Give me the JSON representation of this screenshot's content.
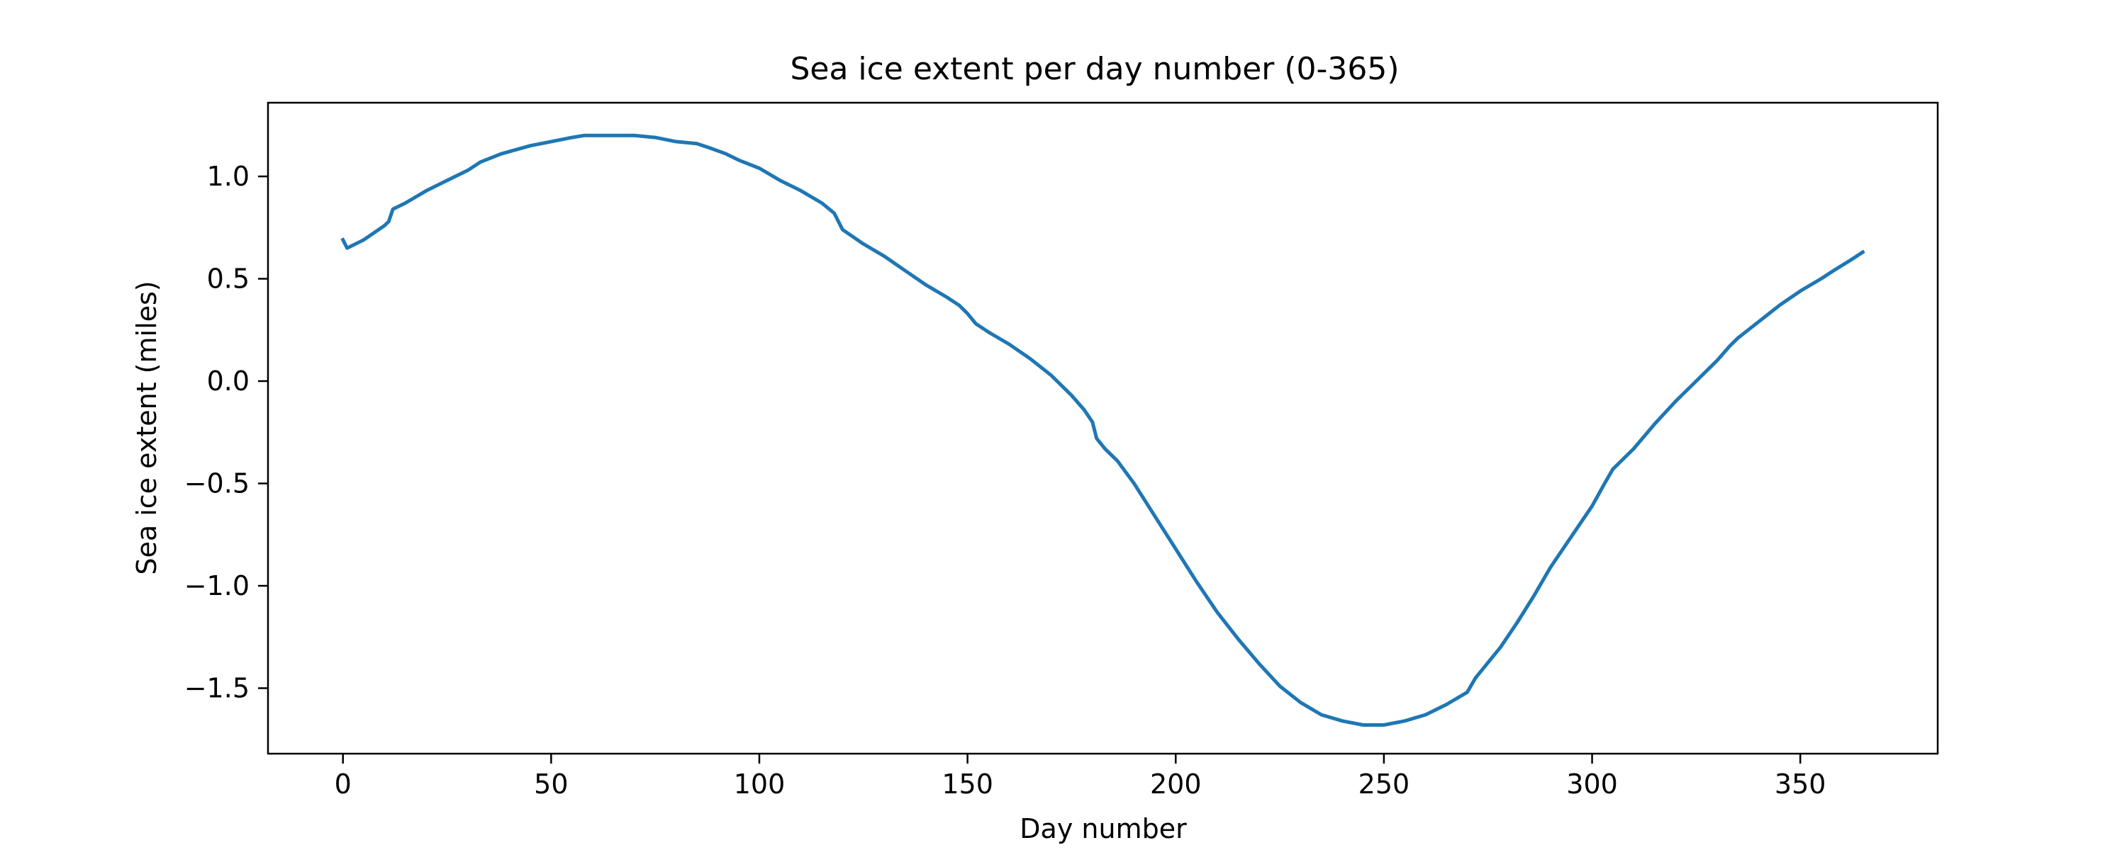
{
  "chart_data": {
    "type": "line",
    "title": "Sea ice extent per day number (0-365)",
    "xlabel": "Day number",
    "ylabel": "Sea ice extent (miles)",
    "xlim": [
      -18,
      383
    ],
    "ylim": [
      -1.82,
      1.36
    ],
    "xticks": [
      0,
      50,
      100,
      150,
      200,
      250,
      300,
      350
    ],
    "xtick_labels": [
      "0",
      "50",
      "100",
      "150",
      "200",
      "250",
      "300",
      "350"
    ],
    "yticks": [
      1.0,
      0.5,
      0.0,
      -0.5,
      -1.0,
      -1.5
    ],
    "ytick_labels": [
      "1.0",
      "0.5",
      "0.0",
      "−0.5",
      "−1.0",
      "−1.5"
    ],
    "grid": false,
    "series": [
      {
        "color": "#1f77b4",
        "x": [
          0,
          1,
          5,
          10,
          11,
          12,
          15,
          20,
          25,
          30,
          33,
          38,
          45,
          50,
          55,
          58,
          62,
          65,
          70,
          75,
          80,
          85,
          88,
          92,
          95,
          100,
          105,
          110,
          115,
          118,
          120,
          125,
          130,
          135,
          140,
          145,
          148,
          150,
          152,
          155,
          160,
          165,
          170,
          175,
          178,
          180,
          181,
          183,
          186,
          190,
          195,
          200,
          205,
          210,
          215,
          220,
          225,
          230,
          235,
          240,
          245,
          250,
          255,
          260,
          265,
          270,
          272,
          274,
          278,
          282,
          286,
          290,
          295,
          300,
          303,
          305,
          310,
          315,
          320,
          325,
          330,
          333,
          335,
          340,
          345,
          350,
          355,
          358,
          362,
          365
        ],
        "y": [
          0.69,
          0.65,
          0.69,
          0.76,
          0.78,
          0.84,
          0.87,
          0.93,
          0.98,
          1.03,
          1.07,
          1.11,
          1.15,
          1.17,
          1.19,
          1.2,
          1.2,
          1.2,
          1.2,
          1.19,
          1.17,
          1.16,
          1.14,
          1.11,
          1.08,
          1.04,
          0.98,
          0.93,
          0.87,
          0.82,
          0.74,
          0.67,
          0.61,
          0.54,
          0.47,
          0.41,
          0.37,
          0.33,
          0.28,
          0.24,
          0.18,
          0.11,
          0.03,
          -0.07,
          -0.14,
          -0.2,
          -0.28,
          -0.33,
          -0.39,
          -0.5,
          -0.66,
          -0.82,
          -0.98,
          -1.13,
          -1.26,
          -1.38,
          -1.49,
          -1.57,
          -1.63,
          -1.66,
          -1.68,
          -1.68,
          -1.66,
          -1.63,
          -1.58,
          -1.52,
          -1.45,
          -1.4,
          -1.3,
          -1.18,
          -1.05,
          -0.91,
          -0.76,
          -0.61,
          -0.5,
          -0.43,
          -0.33,
          -0.21,
          -0.1,
          0.0,
          0.1,
          0.17,
          0.21,
          0.29,
          0.37,
          0.44,
          0.5,
          0.54,
          0.59,
          0.63
        ]
      }
    ]
  }
}
